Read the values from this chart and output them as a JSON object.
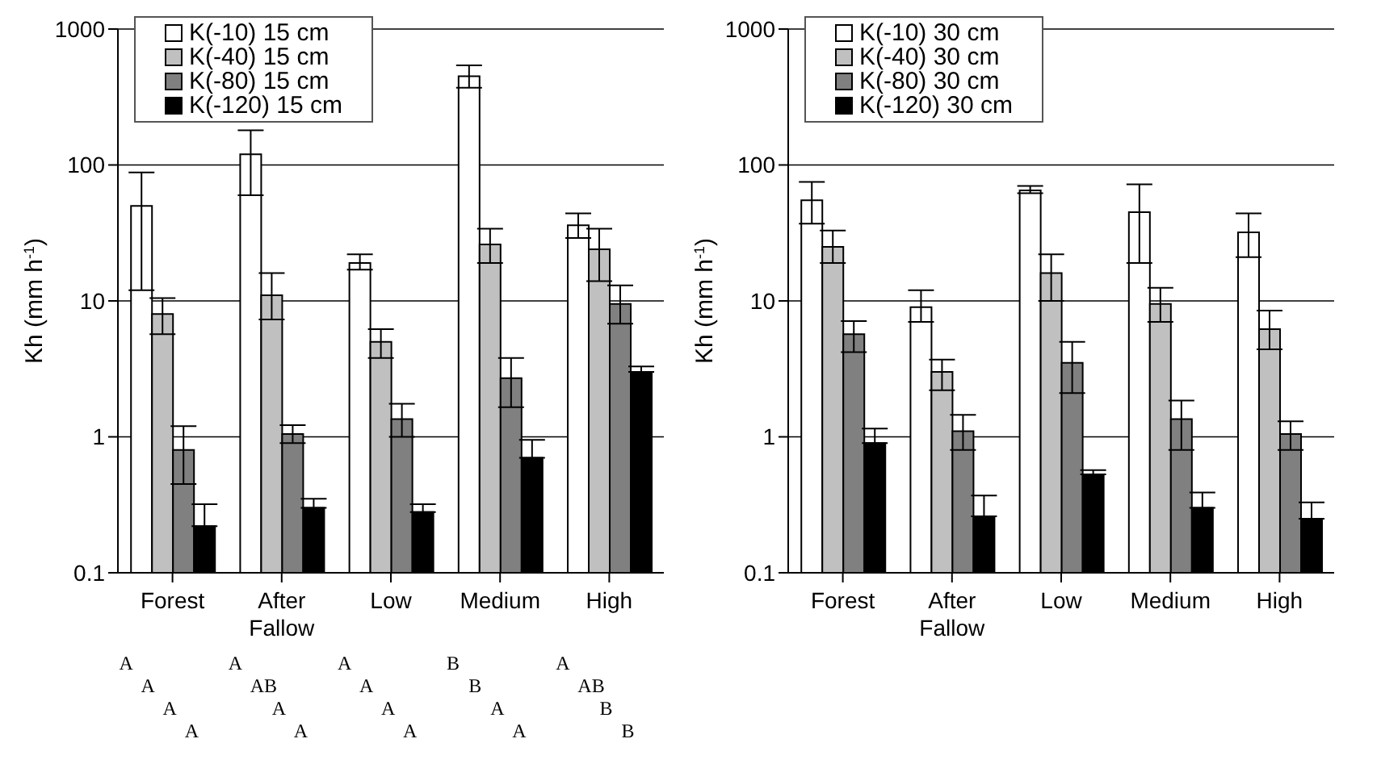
{
  "chart_data": [
    {
      "type": "bar",
      "categories": [
        "Forest",
        "After Fallow",
        "Low",
        "Medium",
        "High"
      ],
      "ylabel": "Kh (mm h$^{-1}$)",
      "log": "y",
      "ylim": [
        0.1,
        1000
      ],
      "yticks": [
        0.1,
        1,
        10,
        100,
        1000
      ],
      "grid": "y",
      "legend": "top",
      "series": [
        {
          "name": "K(-10) 15 cm",
          "color": "#ffffff",
          "values": [
            50,
            120,
            19,
            450,
            36
          ],
          "errors": [
            [
              12,
              88
            ],
            [
              60,
              180
            ],
            [
              17,
              22
            ],
            [
              370,
              540
            ],
            [
              29,
              44
            ]
          ]
        },
        {
          "name": "K(-40) 15 cm",
          "color": "#c0c0c0",
          "values": [
            8,
            11,
            5,
            26,
            24
          ],
          "errors": [
            [
              5.7,
              10.5
            ],
            [
              7.3,
              16
            ],
            [
              3.8,
              6.2
            ],
            [
              19,
              34
            ],
            [
              14,
              34
            ]
          ]
        },
        {
          "name": "K(-80) 15 cm",
          "color": "#808080",
          "values": [
            0.8,
            1.05,
            1.35,
            2.7,
            9.5
          ],
          "errors": [
            [
              0.45,
              1.2
            ],
            [
              0.9,
              1.22
            ],
            [
              1.0,
              1.75
            ],
            [
              1.65,
              3.8
            ],
            [
              6.8,
              13
            ]
          ]
        },
        {
          "name": "K(-120) 15 cm",
          "color": "#000000",
          "values": [
            0.22,
            0.3,
            0.28,
            0.7,
            3.0
          ],
          "errors": [
            [
              0.22,
              0.32
            ],
            [
              0.3,
              0.35
            ],
            [
              0.28,
              0.32
            ],
            [
              0.7,
              0.95
            ],
            [
              3.0,
              3.3
            ]
          ]
        }
      ],
      "annotations": [
        "A",
        "A",
        "A",
        "B",
        "A",
        "A",
        "AB",
        "A",
        "B",
        "AB",
        "A",
        "A",
        "A",
        "A",
        "B",
        "A",
        "A",
        "A",
        "A",
        "B"
      ]
    },
    {
      "type": "bar",
      "categories": [
        "Forest",
        "After Fallow",
        "Low",
        "Medium",
        "High"
      ],
      "ylabel": "Kh (mm h$^{-1}$)",
      "log": "y",
      "ylim": [
        0.1,
        1000
      ],
      "yticks": [
        0.1,
        1,
        10,
        100,
        1000
      ],
      "grid": "y",
      "legend": "top",
      "series": [
        {
          "name": "K(-10) 30 cm",
          "color": "#ffffff",
          "values": [
            55,
            9,
            65,
            45,
            32
          ],
          "errors": [
            [
              37,
              75
            ],
            [
              7,
              12
            ],
            [
              62,
              70
            ],
            [
              19,
              72
            ],
            [
              21,
              44
            ]
          ]
        },
        {
          "name": "K(-40) 30 cm",
          "color": "#c0c0c0",
          "values": [
            25,
            3,
            16,
            9.5,
            6.2
          ],
          "errors": [
            [
              19,
              33
            ],
            [
              2.2,
              3.7
            ],
            [
              10,
              22
            ],
            [
              7,
              12.5
            ],
            [
              4.4,
              8.5
            ]
          ]
        },
        {
          "name": "K(-80) 30 cm",
          "color": "#808080",
          "values": [
            5.7,
            1.1,
            3.5,
            1.35,
            1.05
          ],
          "errors": [
            [
              4.2,
              7.1
            ],
            [
              0.8,
              1.45
            ],
            [
              2.1,
              5
            ],
            [
              0.8,
              1.85
            ],
            [
              0.8,
              1.3
            ]
          ]
        },
        {
          "name": "K(-120) 30 cm",
          "color": "#000000",
          "values": [
            0.9,
            0.26,
            0.53,
            0.3,
            0.25
          ],
          "errors": [
            [
              0.9,
              1.15
            ],
            [
              0.26,
              0.37
            ],
            [
              0.53,
              0.57
            ],
            [
              0.3,
              0.39
            ],
            [
              0.25,
              0.33
            ]
          ]
        }
      ]
    }
  ]
}
